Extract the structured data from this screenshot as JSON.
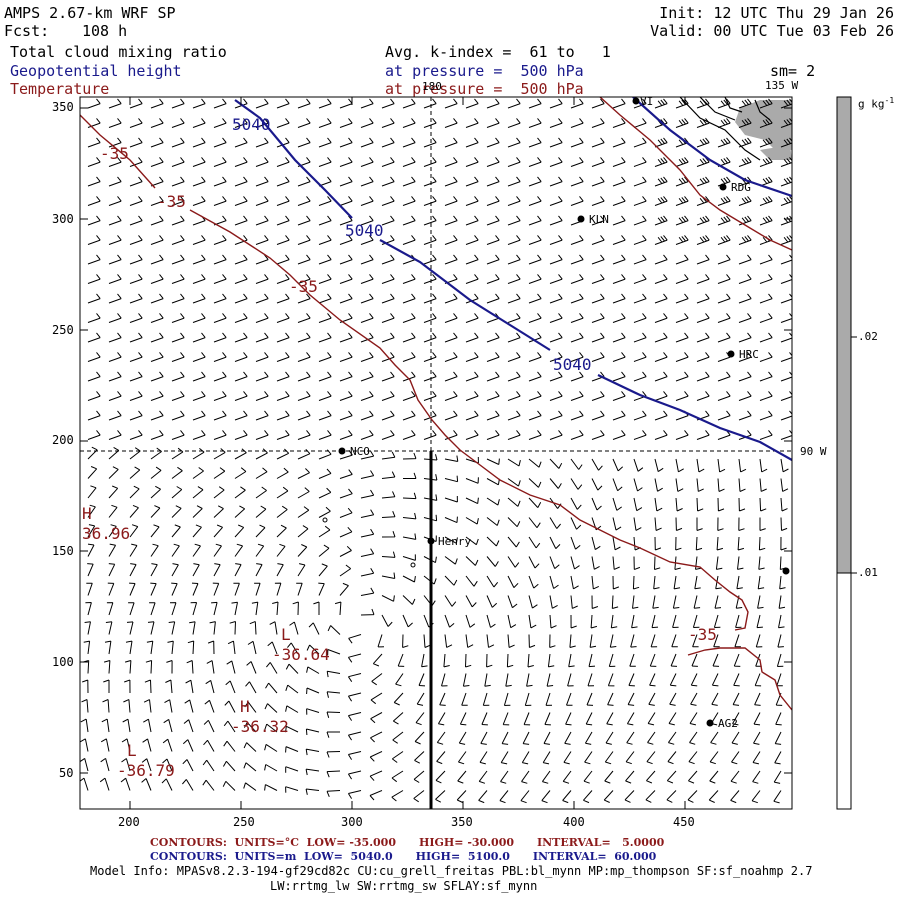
{
  "header": {
    "model": "AMPS 2.67-km WRF SP",
    "fcst_label": "Fcst:",
    "fcst_value": "108 h",
    "init": "Init: 12 UTC Thu 29 Jan 26",
    "valid": "Valid: 00 UTC Tue 03 Feb 26",
    "field1": "Total cloud mixing ratio",
    "field1_avg": "Avg. k-index =  61 to   1",
    "field2": "Geopotential height",
    "field2_level": "at pressure =  500 hPa",
    "field3": "Temperature",
    "field3_level": "at pressure =  500 hPa",
    "sm": "sm= 2"
  },
  "axes": {
    "x_ticks": [
      "200",
      "250",
      "300",
      "350",
      "400",
      "450"
    ],
    "y_ticks": [
      "350",
      "300",
      "250",
      "200",
      "150",
      "100",
      "50"
    ]
  },
  "meridians": {
    "top_label": "180",
    "right_top": "135 W",
    "right_mid": "90 W"
  },
  "stations": [
    {
      "name": "RDG"
    },
    {
      "name": "KLN"
    },
    {
      "name": "HRC"
    },
    {
      "name": "NCO"
    },
    {
      "name": "Henry"
    },
    {
      "name": "AG2"
    },
    {
      "name": "VI"
    }
  ],
  "contour_labels": {
    "height": [
      "5040",
      "5040",
      "5040"
    ],
    "temp": [
      "-35",
      "-35",
      "-35",
      "-35"
    ],
    "extrema": [
      {
        "kind": "H",
        "value": "36.96"
      },
      {
        "kind": "L",
        "value": "-36.64"
      },
      {
        "kind": "H",
        "value": "-36.32"
      },
      {
        "kind": "L",
        "value": "-36.79"
      }
    ]
  },
  "colorbar": {
    "units": "g kg",
    "units_sup": "-1",
    "ticks": [
      ".02",
      ".01"
    ],
    "color_high": "#aaaaaa",
    "color_low": "#ffffff"
  },
  "footer": {
    "temp_line": "CONTOURS:  UNITS=°C  LOW= -35.000      HIGH= -30.000      INTERVAL=   5.0000",
    "height_line": "CONTOURS:  UNITS=m  LOW=  5040.0      HIGH=  5100.0      INTERVAL=  60.000",
    "model_info": "Model Info: MPASv8.2.3-194-gf29cd82c CU:cu_grell_freitas PBL:bl_mynn MP:mp_thompson SF:sf_noahmp 2.7",
    "model_info2": "LW:rrtmg_lw SW:rrtmg_sw SFLAY:sf_mynn"
  },
  "colors": {
    "height_contour": "#1a1a8c",
    "temp_contour": "#8b1a1a"
  }
}
